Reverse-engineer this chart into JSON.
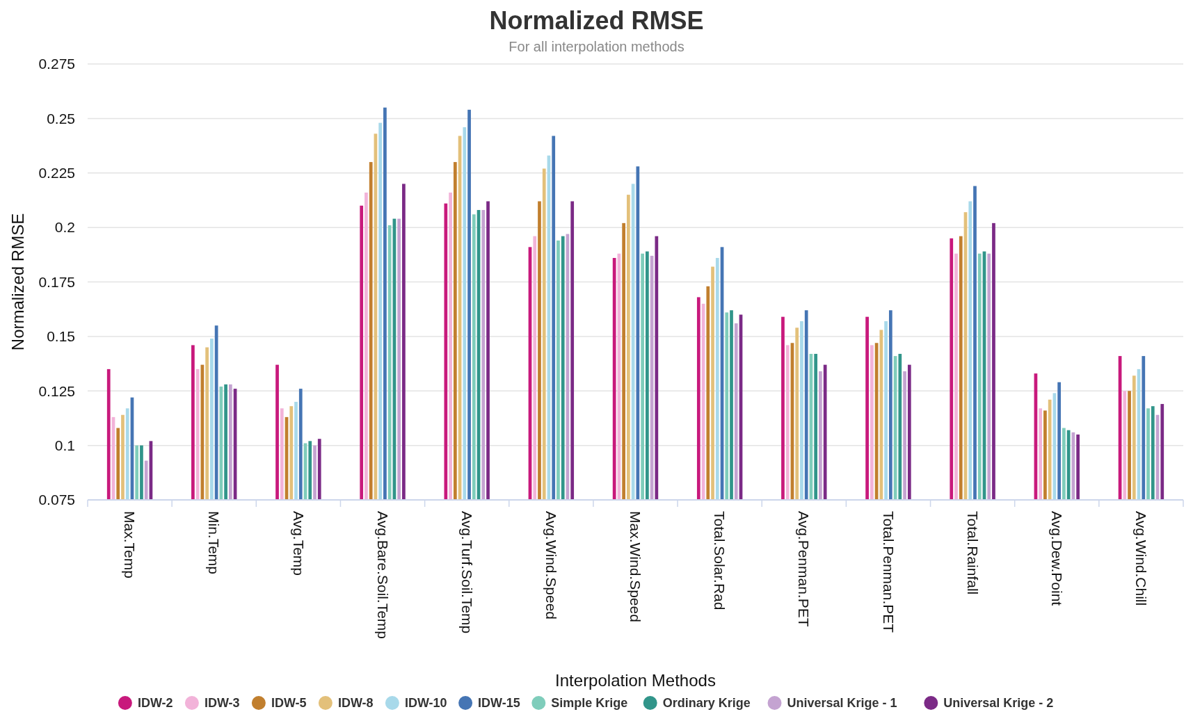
{
  "chart_data": {
    "type": "bar",
    "title": "Normalized RMSE",
    "subtitle": "For all interpolation methods",
    "xlabel": "Interpolation Methods",
    "ylabel": "Normalized RMSE",
    "categories": [
      "Max.Temp",
      "Min.Temp",
      "Avg.Temp",
      "Avg.Bare.Soil.Temp",
      "Avg.Turf.Soil.Temp",
      "Avg.Wind.Speed",
      "Max.Wind.Speed",
      "Total.Solar.Rad",
      "Avg.Penman.PET",
      "Total.Penman.PET",
      "Total.Rainfall",
      "Avg.Dew.Point",
      "Avg.Wind.Chill"
    ],
    "series": [
      {
        "name": "IDW-2",
        "color": "#c8197c",
        "values": [
          0.135,
          0.146,
          0.137,
          0.21,
          0.211,
          0.191,
          0.186,
          0.168,
          0.159,
          0.159,
          0.195,
          0.133,
          0.141
        ]
      },
      {
        "name": "IDW-3",
        "color": "#f2b3d9",
        "values": [
          0.113,
          0.135,
          0.117,
          0.216,
          0.216,
          0.196,
          0.188,
          0.165,
          0.146,
          0.146,
          0.188,
          0.117,
          0.125
        ]
      },
      {
        "name": "IDW-5",
        "color": "#c17f2e",
        "values": [
          0.108,
          0.137,
          0.113,
          0.23,
          0.23,
          0.212,
          0.202,
          0.173,
          0.147,
          0.147,
          0.196,
          0.116,
          0.125
        ]
      },
      {
        "name": "IDW-8",
        "color": "#e3c07a",
        "values": [
          0.114,
          0.145,
          0.118,
          0.243,
          0.242,
          0.227,
          0.215,
          0.182,
          0.154,
          0.153,
          0.207,
          0.121,
          0.132
        ]
      },
      {
        "name": "IDW-10",
        "color": "#a8d9ea",
        "values": [
          0.117,
          0.149,
          0.12,
          0.248,
          0.246,
          0.233,
          0.22,
          0.186,
          0.157,
          0.157,
          0.212,
          0.124,
          0.135
        ]
      },
      {
        "name": "IDW-15",
        "color": "#4575b4",
        "values": [
          0.122,
          0.155,
          0.126,
          0.255,
          0.254,
          0.242,
          0.228,
          0.191,
          0.162,
          0.162,
          0.219,
          0.129,
          0.141
        ]
      },
      {
        "name": "Simple Krige",
        "color": "#7fcdbb",
        "values": [
          0.1,
          0.127,
          0.101,
          0.201,
          0.206,
          0.194,
          0.188,
          0.161,
          0.142,
          0.141,
          0.188,
          0.108,
          0.117
        ]
      },
      {
        "name": "Ordinary Krige",
        "color": "#31958a",
        "values": [
          0.1,
          0.128,
          0.102,
          0.204,
          0.208,
          0.196,
          0.189,
          0.162,
          0.142,
          0.142,
          0.189,
          0.107,
          0.118
        ]
      },
      {
        "name": "Universal Krige - 1",
        "color": "#c4a3d1",
        "values": [
          0.093,
          0.128,
          0.1,
          0.204,
          0.208,
          0.197,
          0.187,
          0.156,
          0.134,
          0.134,
          0.188,
          0.106,
          0.114
        ]
      },
      {
        "name": "Universal Krige - 2",
        "color": "#7b2a86",
        "values": [
          0.102,
          0.126,
          0.103,
          0.22,
          0.212,
          0.212,
          0.196,
          0.16,
          0.137,
          0.137,
          0.202,
          0.105,
          0.119
        ]
      }
    ],
    "ylim": [
      0.075,
      0.275
    ],
    "yticks": [
      0.075,
      0.1,
      0.125,
      0.15,
      0.175,
      0.2,
      0.225,
      0.25,
      0.275
    ],
    "grid": "y",
    "legend": "bottom"
  }
}
